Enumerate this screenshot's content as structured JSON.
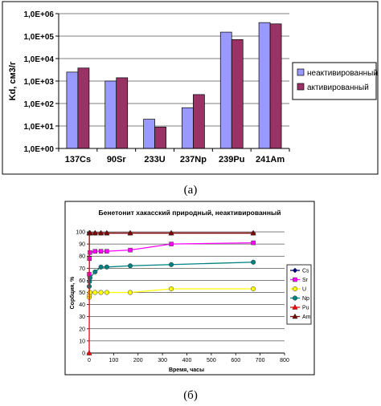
{
  "chart_data": [
    {
      "type": "bar",
      "log_scale": true,
      "ylabel": "Kd, см3/г",
      "ylim": [
        1,
        1000000
      ],
      "y_ticks": [
        "1,0E+00",
        "1,0E+01",
        "1,0E+02",
        "1,0E+03",
        "1,0E+04",
        "1,0E+05",
        "1,0E+06"
      ],
      "categories": [
        "137Cs",
        "90Sr",
        "233U",
        "237Np",
        "239Pu",
        "241Am"
      ],
      "series": [
        {
          "name": "неактивированный",
          "color": "#9999ff",
          "values": [
            2500,
            1000,
            20,
            65,
            150000,
            400000
          ]
        },
        {
          "name": "активированный",
          "color": "#993366",
          "values": [
            3800,
            1400,
            9,
            250,
            70000,
            350000
          ]
        }
      ],
      "legend": "right",
      "caption": "(а)"
    },
    {
      "type": "line",
      "title": "Бенетонит хакасский природный, неактивированный",
      "xlabel": "Время, часы",
      "ylabel": "Сорбция, %",
      "xlim": [
        0,
        800
      ],
      "ylim": [
        0,
        100
      ],
      "x_ticks": [
        "0",
        "100",
        "200",
        "300",
        "400",
        "500",
        "600",
        "700",
        "800"
      ],
      "y_ticks": [
        "0",
        "10",
        "20",
        "30",
        "40",
        "50",
        "60",
        "70",
        "80",
        "90",
        "100"
      ],
      "x": [
        0,
        1,
        3,
        24,
        48,
        72,
        168,
        336,
        672
      ],
      "series": [
        {
          "name": "Cs",
          "color": "#000080",
          "marker": "diamond",
          "values": [
            99,
            99,
            99,
            99,
            99,
            99,
            99,
            99,
            99
          ]
        },
        {
          "name": "Sr",
          "color": "#ff00ff",
          "marker": "square",
          "values": [
            65,
            78,
            83,
            84,
            84,
            84,
            85,
            90,
            91
          ]
        },
        {
          "name": "U",
          "color": "#ffff00",
          "marker": "circle",
          "values": [
            46,
            48,
            50,
            50,
            50,
            50,
            50,
            53,
            53
          ]
        },
        {
          "name": "Np",
          "color": "#008080",
          "marker": "circle",
          "values": [
            55,
            59,
            62,
            67,
            71,
            71,
            72,
            73,
            75
          ]
        },
        {
          "name": "Pu",
          "color": "#ff0000",
          "marker": "triangle",
          "values": [
            0,
            99,
            99,
            99,
            99,
            99,
            99,
            99,
            99
          ]
        },
        {
          "name": "Am",
          "color": "#800000",
          "marker": "triangle",
          "values": [
            99,
            99,
            99,
            99,
            99,
            99,
            99,
            99,
            99
          ]
        }
      ],
      "legend": "right",
      "caption": "(б)"
    }
  ]
}
